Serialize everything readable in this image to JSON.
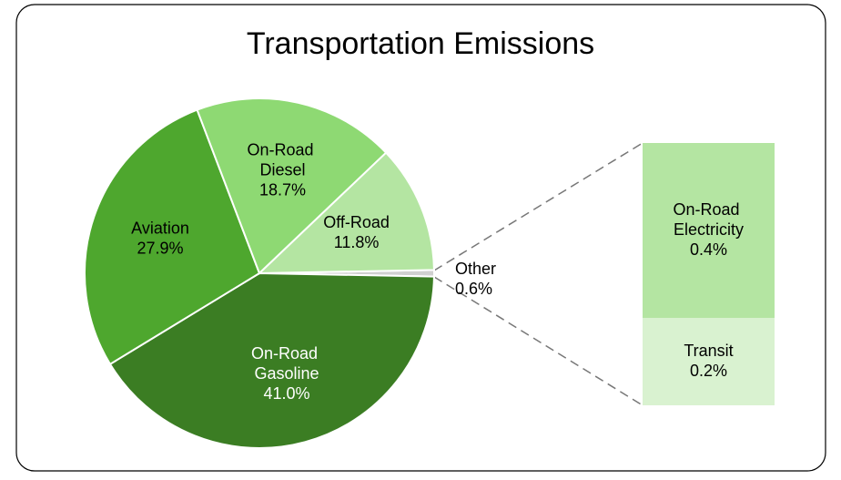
{
  "chart_data": {
    "type": "bar-of-pie",
    "title": "Transportation Emissions",
    "categories": [
      "Other",
      "On-Road Gasoline",
      "Aviation",
      "On-Road Diesel",
      "Off-Road"
    ],
    "values": [
      0.6,
      41.0,
      27.9,
      18.7,
      11.8
    ],
    "value_labels": [
      "0.6%",
      "41.0%",
      "27.9%",
      "18.7%",
      "11.8%"
    ],
    "colors": [
      "#d0d0d0",
      "#3b7d23",
      "#4ea72e",
      "#8ed973",
      "#b4e5a2"
    ],
    "bar": {
      "categories": [
        "On-Road Electricity",
        "Transit"
      ],
      "values": [
        0.4,
        0.2
      ],
      "value_labels": [
        "0.4%",
        "0.2%"
      ],
      "colors": [
        "#b4e5a2",
        "#d9f2d0"
      ]
    }
  }
}
